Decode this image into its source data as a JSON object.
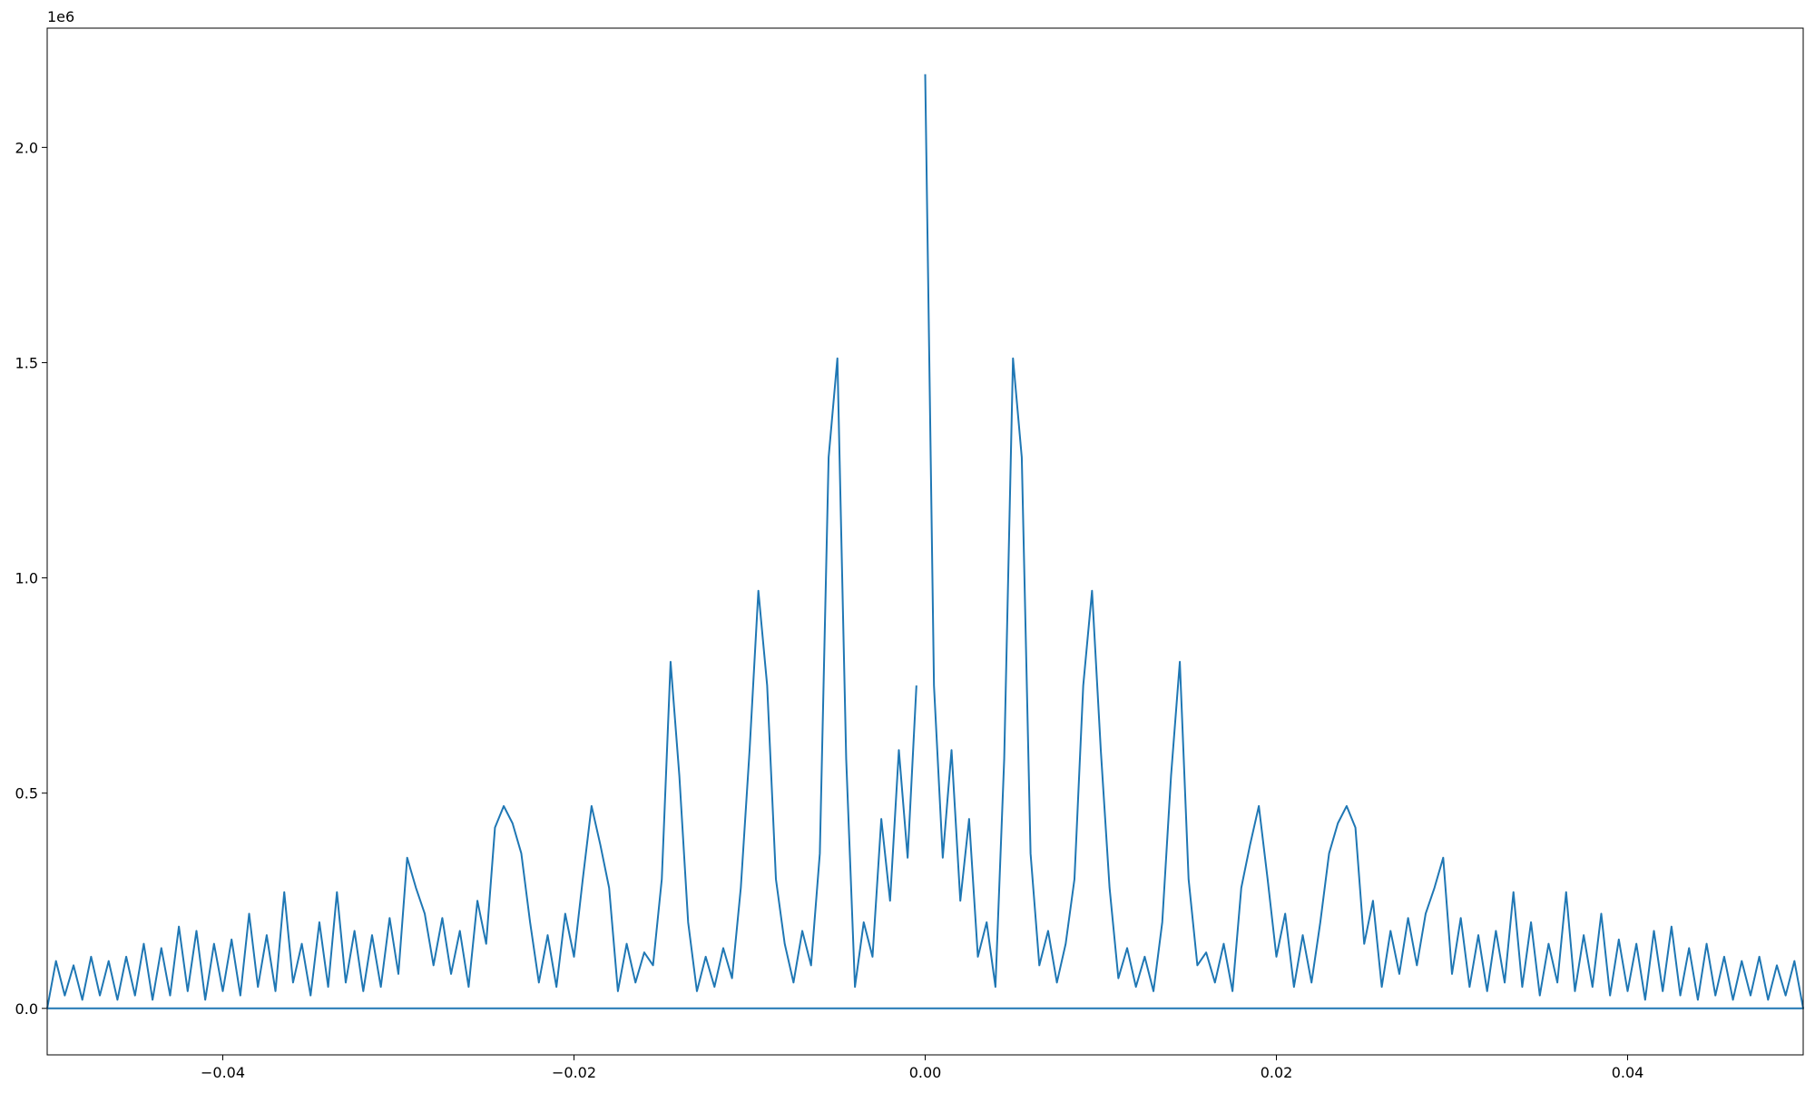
{
  "chart_data": {
    "type": "line",
    "y_offset_label": "1e6",
    "color": "#1f77b4",
    "grid": false,
    "xlim": [
      -0.05,
      0.05
    ],
    "ylim": [
      -0.108,
      2.277
    ],
    "xticks": [
      {
        "value": -0.04,
        "label": "−0.04"
      },
      {
        "value": -0.02,
        "label": "−0.02"
      },
      {
        "value": 0,
        "label": "0.00"
      },
      {
        "value": 0.02,
        "label": "0.02"
      },
      {
        "value": 0.04,
        "label": "0.04"
      }
    ],
    "yticks": [
      {
        "value": 0,
        "label": "0.0"
      },
      0.5,
      {
        "value": 1,
        "label": "1.0"
      },
      1.5,
      {
        "value": 2,
        "label": "2.0"
      }
    ],
    "x": [
      0,
      0.0005,
      0.001,
      0.0015,
      0.002,
      0.0025,
      0.003,
      0.0035,
      0.004,
      0.0045,
      0.005,
      0.0055,
      0.006,
      0.0065,
      0.007,
      0.0075,
      0.008,
      0.0085,
      0.009,
      0.0095,
      0.01,
      0.0105,
      0.011,
      0.0115,
      0.012,
      0.0125,
      0.013,
      0.0135,
      0.014,
      0.0145,
      0.015,
      0.0155,
      0.016,
      0.0165,
      0.017,
      0.0175,
      0.018,
      0.0185,
      0.019,
      0.0195,
      0.02,
      0.0205,
      0.021,
      0.0215,
      0.022,
      0.0225,
      0.023,
      0.0235,
      0.024,
      0.0245,
      0.025,
      0.0255,
      0.026,
      0.0265,
      0.027,
      0.0275,
      0.028,
      0.0285,
      0.029,
      0.0295,
      0.03,
      0.0305,
      0.031,
      0.0315,
      0.032,
      0.0325,
      0.033,
      0.0335,
      0.034,
      0.0345,
      0.035,
      0.0355,
      0.036,
      0.0365,
      0.037,
      0.0375,
      0.038,
      0.0385,
      0.039,
      0.0395,
      0.04,
      0.0405,
      0.041,
      0.0415,
      0.042,
      0.0425,
      0.043,
      0.0435,
      0.044,
      0.0445,
      0.045,
      0.0455,
      0.046,
      0.0465,
      0.047,
      0.0475,
      0.048,
      0.0485,
      0.049,
      0.0495,
      0.05,
      -0.05,
      -0.0495,
      -0.049,
      -0.0485,
      -0.048,
      -0.0475,
      -0.047,
      -0.0465,
      -0.046,
      -0.0455,
      -0.045,
      -0.0445,
      -0.044,
      -0.0435,
      -0.043,
      -0.0425,
      -0.042,
      -0.0415,
      -0.041,
      -0.0405,
      -0.04,
      -0.0395,
      -0.039,
      -0.0385,
      -0.038,
      -0.0375,
      -0.037,
      -0.0365,
      -0.036,
      -0.0355,
      -0.035,
      -0.0345,
      -0.034,
      -0.0335,
      -0.033,
      -0.0325,
      -0.032,
      -0.0315,
      -0.031,
      -0.0305,
      -0.03,
      -0.0295,
      -0.029,
      -0.0285,
      -0.028,
      -0.0275,
      -0.027,
      -0.0265,
      -0.026,
      -0.0255,
      -0.025,
      -0.0245,
      -0.024,
      -0.0235,
      -0.023,
      -0.0225,
      -0.022,
      -0.0215,
      -0.021,
      -0.0205,
      -0.02,
      -0.0195,
      -0.019,
      -0.0185,
      -0.018,
      -0.0175,
      -0.017,
      -0.0165,
      -0.016,
      -0.0155,
      -0.015,
      -0.0145,
      -0.014,
      -0.0135,
      -0.013,
      -0.0125,
      -0.012,
      -0.0115,
      -0.011,
      -0.0105,
      -0.01,
      -0.0095,
      -0.009,
      -0.0085,
      -0.008,
      -0.0075,
      -0.007,
      -0.0065,
      -0.006,
      -0.0055,
      -0.005,
      -0.0045,
      -0.004,
      -0.0035,
      -0.003,
      -0.0025,
      -0.002,
      -0.0015,
      -0.001,
      -0.0005
    ],
    "values": [
      2.17,
      0.75,
      0.35,
      0.6,
      0.25,
      0.44,
      0.12,
      0.2,
      0.05,
      0.58,
      1.51,
      1.28,
      0.36,
      0.1,
      0.18,
      0.06,
      0.15,
      0.3,
      0.75,
      0.97,
      0.6,
      0.28,
      0.07,
      0.14,
      0.05,
      0.12,
      0.04,
      0.2,
      0.54,
      0.805,
      0.3,
      0.1,
      0.13,
      0.06,
      0.15,
      0.04,
      0.28,
      0.38,
      0.47,
      0.3,
      0.12,
      0.22,
      0.05,
      0.17,
      0.06,
      0.2,
      0.36,
      0.43,
      0.47,
      0.42,
      0.15,
      0.25,
      0.05,
      0.18,
      0.08,
      0.21,
      0.1,
      0.22,
      0.28,
      0.35,
      0.08,
      0.21,
      0.05,
      0.17,
      0.04,
      0.18,
      0.06,
      0.27,
      0.05,
      0.2,
      0.03,
      0.15,
      0.06,
      0.27,
      0.04,
      0.17,
      0.05,
      0.22,
      0.03,
      0.16,
      0.04,
      0.15,
      0.02,
      0.18,
      0.04,
      0.19,
      0.03,
      0.14,
      0.02,
      0.15,
      0.03,
      0.12,
      0.02,
      0.11,
      0.03,
      0.12,
      0.02,
      0.1,
      0.03,
      0.11,
      0,
      0,
      0.11,
      0.03,
      0.1,
      0.02,
      0.12,
      0.03,
      0.11,
      0.02,
      0.12,
      0.03,
      0.15,
      0.02,
      0.14,
      0.03,
      0.19,
      0.04,
      0.18,
      0.02,
      0.15,
      0.04,
      0.16,
      0.03,
      0.22,
      0.05,
      0.17,
      0.04,
      0.27,
      0.06,
      0.15,
      0.03,
      0.2,
      0.05,
      0.27,
      0.06,
      0.18,
      0.04,
      0.17,
      0.05,
      0.21,
      0.08,
      0.35,
      0.28,
      0.22,
      0.1,
      0.21,
      0.08,
      0.18,
      0.05,
      0.25,
      0.15,
      0.42,
      0.47,
      0.43,
      0.36,
      0.2,
      0.06,
      0.17,
      0.05,
      0.22,
      0.12,
      0.3,
      0.47,
      0.38,
      0.28,
      0.04,
      0.15,
      0.06,
      0.13,
      0.1,
      0.3,
      0.805,
      0.54,
      0.2,
      0.04,
      0.12,
      0.05,
      0.14,
      0.07,
      0.28,
      0.6,
      0.97,
      0.75,
      0.3,
      0.15,
      0.06,
      0.18,
      0.1,
      0.36,
      1.28,
      1.51,
      0.58,
      0.05,
      0.2,
      0.12,
      0.44,
      0.25,
      0.6,
      0.35,
      0.75
    ]
  }
}
